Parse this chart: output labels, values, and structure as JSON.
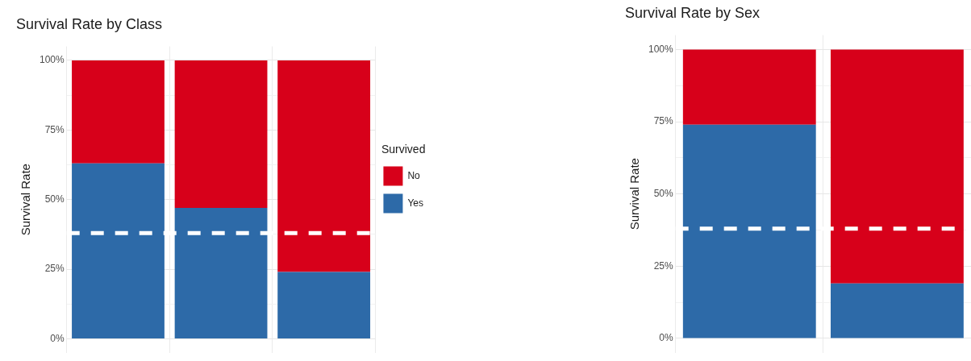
{
  "chart_data": [
    {
      "type": "bar",
      "title": "Survival Rate by Class",
      "ylabel": "Survival Rate",
      "legend_title": "Survived",
      "categories": [
        null,
        null,
        null
      ],
      "stacked": true,
      "series": [
        {
          "name": "Yes",
          "color": "#2d6aa8",
          "values": [
            63,
            47,
            24
          ]
        },
        {
          "name": "No",
          "color": "#d7001a",
          "values": [
            37,
            53,
            76
          ]
        }
      ],
      "ylim": [
        -5,
        105
      ],
      "yticks": [
        {
          "value": 0,
          "label": "0%"
        },
        {
          "value": 12.5,
          "label": null
        },
        {
          "value": 25,
          "label": "25%"
        },
        {
          "value": 37.5,
          "label": null
        },
        {
          "value": 50,
          "label": "50%"
        },
        {
          "value": 62.5,
          "label": null
        },
        {
          "value": 75,
          "label": "75%"
        },
        {
          "value": 87.5,
          "label": null
        },
        {
          "value": 100,
          "label": "100%"
        }
      ],
      "ref_lines": [
        {
          "axis": "y",
          "value": 38,
          "color": "#ffffff",
          "line_style": "dashed"
        }
      ],
      "grid": true,
      "legend": "right",
      "tick_labels": "y"
    },
    {
      "type": "bar",
      "title": "Survival Rate by Sex",
      "ylabel": "Survival Rate",
      "categories": [
        null,
        null
      ],
      "stacked": true,
      "series": [
        {
          "color": "#2d6aa8",
          "values": [
            74,
            19
          ]
        },
        {
          "color": "#d7001a",
          "values": [
            26,
            81
          ]
        }
      ],
      "ylim": [
        -5,
        105
      ],
      "yticks": [
        {
          "value": 0,
          "label": "0%"
        },
        {
          "value": 12.5,
          "label": null
        },
        {
          "value": 25,
          "label": "25%"
        },
        {
          "value": 37.5,
          "label": null
        },
        {
          "value": 50,
          "label": "50%"
        },
        {
          "value": 62.5,
          "label": null
        },
        {
          "value": 75,
          "label": "75%"
        },
        {
          "value": 87.5,
          "label": null
        },
        {
          "value": 100,
          "label": "100%"
        }
      ],
      "ref_lines": [
        {
          "axis": "y",
          "value": 38,
          "color": "#ffffff",
          "line_style": "dashed"
        }
      ],
      "grid": true,
      "tick_labels": "y"
    }
  ]
}
